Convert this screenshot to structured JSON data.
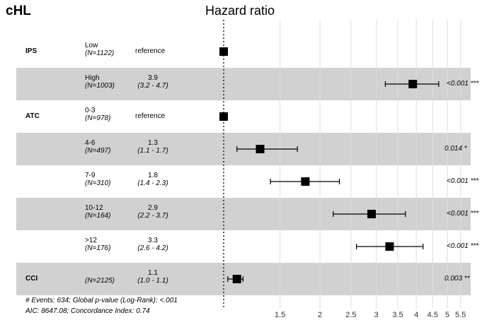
{
  "panel_title": "cHL",
  "chart_data": {
    "type": "forest",
    "title": "Hazard ratio",
    "x_scale": "log",
    "x_ticks": [
      1.5,
      2,
      2.5,
      3,
      3.5,
      4,
      4.5,
      5,
      5.5
    ],
    "reference_line": 1,
    "rows": [
      {
        "variable": "IPS",
        "level": "Low",
        "n": "(N=1122)",
        "estimate_text": "reference",
        "ci_text": "",
        "hr": 1,
        "lo": null,
        "hi": null,
        "p": "",
        "shaded": false
      },
      {
        "variable": "",
        "level": "High",
        "n": "(N=1003)",
        "estimate_text": "3.9",
        "ci_text": "(3.2 - 4.7)",
        "hr": 3.9,
        "lo": 3.2,
        "hi": 4.7,
        "p": "<0.001 ***",
        "shaded": true
      },
      {
        "variable": "ATC",
        "level": "0-3",
        "n": "(N=978)",
        "estimate_text": "reference",
        "ci_text": "",
        "hr": 1,
        "lo": null,
        "hi": null,
        "p": "",
        "shaded": false
      },
      {
        "variable": "",
        "level": "4-6",
        "n": "(N=497)",
        "estimate_text": "1.3",
        "ci_text": "(1.1 - 1.7)",
        "hr": 1.3,
        "lo": 1.1,
        "hi": 1.7,
        "p": "0.014 *",
        "shaded": true
      },
      {
        "variable": "",
        "level": "7-9",
        "n": "(N=310)",
        "estimate_text": "1.8",
        "ci_text": "(1.4 - 2.3)",
        "hr": 1.8,
        "lo": 1.4,
        "hi": 2.3,
        "p": "<0.001 ***",
        "shaded": false
      },
      {
        "variable": "",
        "level": "10-12",
        "n": "(N=164)",
        "estimate_text": "2.9",
        "ci_text": "(2.2 - 3.7)",
        "hr": 2.9,
        "lo": 2.2,
        "hi": 3.7,
        "p": "<0.001 ***",
        "shaded": true
      },
      {
        "variable": "",
        "level": ">12",
        "n": "(N=176)",
        "estimate_text": "3.3",
        "ci_text": "(2.6 - 4.2)",
        "hr": 3.3,
        "lo": 2.6,
        "hi": 4.2,
        "p": "<0.001 ***",
        "shaded": false
      },
      {
        "variable": "CCI",
        "level": "",
        "n": "(N=2125)",
        "estimate_text": "1.1",
        "ci_text": "(1.0 - 1.1)",
        "hr": 1.1,
        "lo": 1.03,
        "hi": 1.15,
        "p": "0.003 **",
        "shaded": true
      }
    ],
    "footer": [
      "# Events: 634; Global p-value (Log-Rank): <.001",
      "AIC: 8647.08; Concordance Index: 0.74"
    ],
    "colors": {
      "shade": "#d1d1d1",
      "grid": "#dedede",
      "marker": "#000000"
    }
  }
}
